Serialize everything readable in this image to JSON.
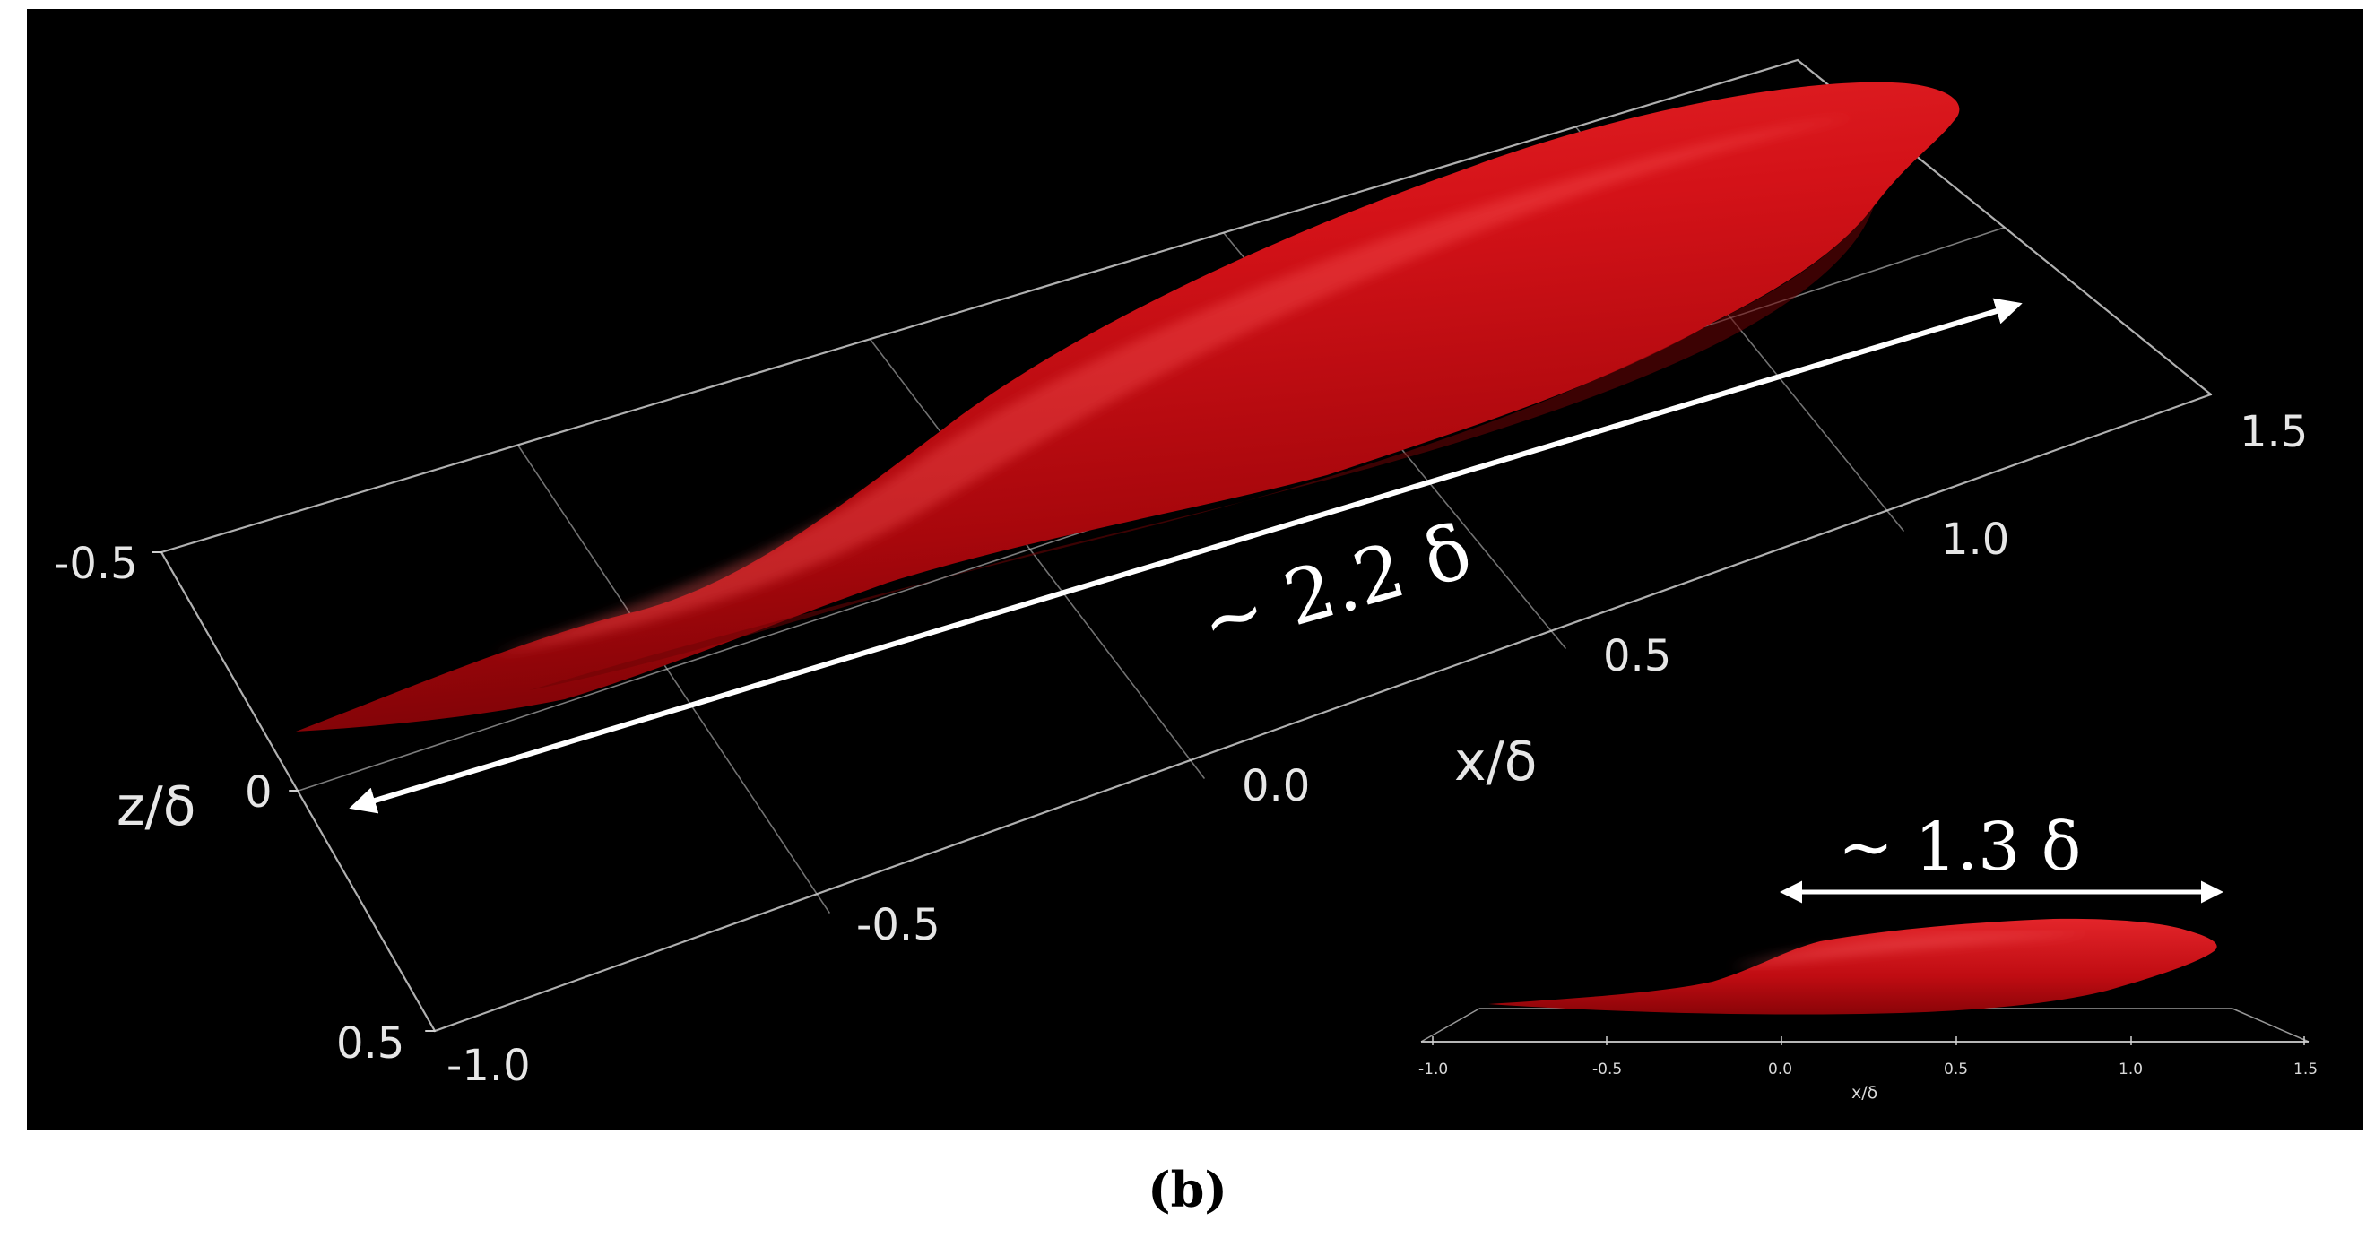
{
  "main_view": {
    "x_ticks": [
      "-1.0",
      "-0.5",
      "0.0",
      "0.5",
      "1.0",
      "1.5"
    ],
    "z_ticks": [
      "-0.5",
      "0",
      "0.5"
    ],
    "x_axis_label": "x/δ",
    "z_axis_label": "z/δ",
    "length_annotation": "~ 2.2 δ"
  },
  "inset_view": {
    "x_ticks": [
      "-1.0",
      "-0.5",
      "0.0",
      "0.5",
      "1.0",
      "1.5"
    ],
    "x_axis_label": "x/δ",
    "height_annotation": "~ 1.3 δ"
  },
  "caption": "(b)",
  "colors": {
    "background": "#000000",
    "structure": "#c8080f",
    "grid": "#cfcfcf",
    "arrow": "#ffffff"
  }
}
